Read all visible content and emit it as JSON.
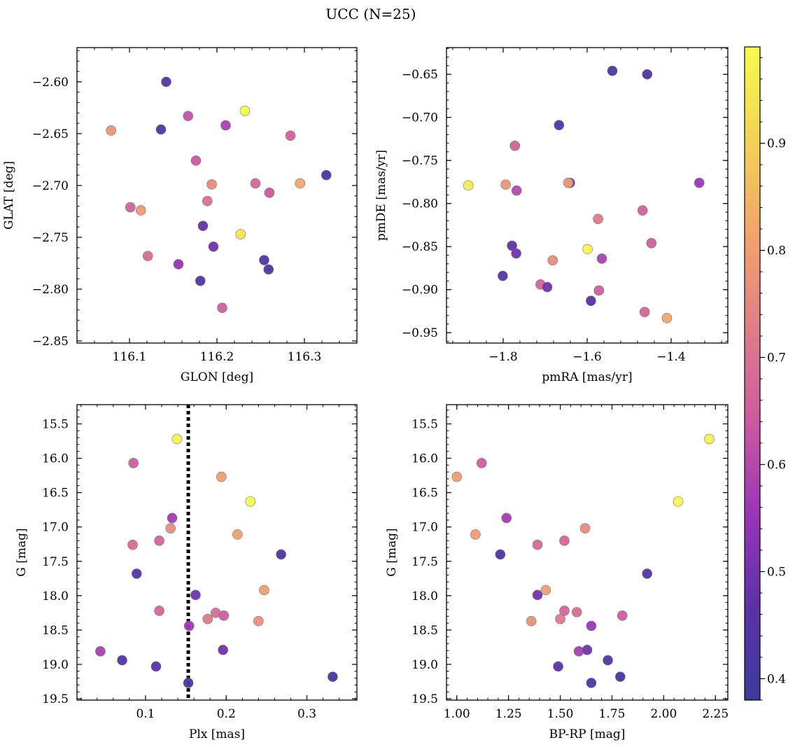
{
  "figure": {
    "title": "UCC (N=25)"
  },
  "colorbar": {
    "range": [
      0.38,
      0.99
    ],
    "ticks": [
      0.4,
      0.5,
      0.6,
      0.7,
      0.8,
      0.9
    ],
    "tick_labels": [
      "0.4",
      "0.5",
      "0.6",
      "0.7",
      "0.8",
      "0.9"
    ],
    "colormap": "plasma-like",
    "stops": [
      "#3e3a9b",
      "#5a32a8",
      "#9a35b8",
      "#cc5aa0",
      "#e07e88",
      "#f2a46c",
      "#f3d257",
      "#f4fb4e"
    ]
  },
  "chart_data": [
    {
      "type": "scatter",
      "name": "glon-glat",
      "xlabel": "GLON [deg]",
      "ylabel": "GLAT [deg]",
      "xlim": [
        116.04,
        116.36
      ],
      "ylim": [
        -2.852,
        -2.567
      ],
      "xticks": [
        116.1,
        116.2,
        116.3
      ],
      "xtick_labels": [
        "116.1",
        "116.2",
        "116.3"
      ],
      "yticks": [
        -2.85,
        -2.8,
        -2.75,
        -2.7,
        -2.65,
        -2.6
      ],
      "ytick_labels": [
        "−2.85",
        "−2.80",
        "−2.75",
        "−2.70",
        "−2.65",
        "−2.60"
      ],
      "points": [
        {
          "x": 116.142,
          "y": -2.6,
          "c": 0.45
        },
        {
          "x": 116.079,
          "y": -2.647,
          "c": 0.78
        },
        {
          "x": 116.136,
          "y": -2.646,
          "c": 0.42
        },
        {
          "x": 116.167,
          "y": -2.633,
          "c": 0.62
        },
        {
          "x": 116.21,
          "y": -2.642,
          "c": 0.58
        },
        {
          "x": 116.232,
          "y": -2.628,
          "c": 0.99
        },
        {
          "x": 116.284,
          "y": -2.652,
          "c": 0.66
        },
        {
          "x": 116.176,
          "y": -2.676,
          "c": 0.64
        },
        {
          "x": 116.194,
          "y": -2.699,
          "c": 0.76
        },
        {
          "x": 116.244,
          "y": -2.698,
          "c": 0.67
        },
        {
          "x": 116.26,
          "y": -2.707,
          "c": 0.64
        },
        {
          "x": 116.295,
          "y": -2.698,
          "c": 0.82
        },
        {
          "x": 116.325,
          "y": -2.69,
          "c": 0.41
        },
        {
          "x": 116.101,
          "y": -2.721,
          "c": 0.66
        },
        {
          "x": 116.113,
          "y": -2.724,
          "c": 0.79
        },
        {
          "x": 116.189,
          "y": -2.715,
          "c": 0.7
        },
        {
          "x": 116.184,
          "y": -2.739,
          "c": 0.48
        },
        {
          "x": 116.227,
          "y": -2.747,
          "c": 0.95
        },
        {
          "x": 116.196,
          "y": -2.759,
          "c": 0.5
        },
        {
          "x": 116.121,
          "y": -2.768,
          "c": 0.68
        },
        {
          "x": 116.156,
          "y": -2.776,
          "c": 0.55
        },
        {
          "x": 116.254,
          "y": -2.772,
          "c": 0.44
        },
        {
          "x": 116.259,
          "y": -2.781,
          "c": 0.42
        },
        {
          "x": 116.181,
          "y": -2.792,
          "c": 0.45
        },
        {
          "x": 116.206,
          "y": -2.818,
          "c": 0.66
        }
      ]
    },
    {
      "type": "scatter",
      "name": "pmra-pmde",
      "xlabel": "pmRA [mas/yr]",
      "ylabel": "pmDE [mas/yr]",
      "xlim": [
        -1.935,
        -1.265
      ],
      "ylim": [
        -0.962,
        -0.619
      ],
      "xticks": [
        -1.8,
        -1.6,
        -1.4
      ],
      "xtick_labels": [
        "−1.8",
        "−1.6",
        "−1.4"
      ],
      "yticks": [
        -0.95,
        -0.9,
        -0.85,
        -0.8,
        -0.75,
        -0.7,
        -0.65
      ],
      "ytick_labels": [
        "−0.95",
        "−0.90",
        "−0.85",
        "−0.80",
        "−0.75",
        "−0.70",
        "−0.65"
      ],
      "points": [
        {
          "x": -1.54,
          "y": -0.646,
          "c": 0.42
        },
        {
          "x": -1.457,
          "y": -0.65,
          "c": 0.43
        },
        {
          "x": -1.667,
          "y": -0.709,
          "c": 0.44
        },
        {
          "x": -1.772,
          "y": -0.733,
          "c": 0.66
        },
        {
          "x": -1.883,
          "y": -0.779,
          "c": 0.96
        },
        {
          "x": -1.794,
          "y": -0.778,
          "c": 0.78
        },
        {
          "x": -1.768,
          "y": -0.785,
          "c": 0.6
        },
        {
          "x": -1.641,
          "y": -0.776,
          "c": 0.42
        },
        {
          "x": -1.645,
          "y": -0.776,
          "c": 0.8
        },
        {
          "x": -1.333,
          "y": -0.776,
          "c": 0.56
        },
        {
          "x": -1.468,
          "y": -0.808,
          "c": 0.66
        },
        {
          "x": -1.574,
          "y": -0.818,
          "c": 0.72
        },
        {
          "x": -1.779,
          "y": -0.849,
          "c": 0.48
        },
        {
          "x": -1.769,
          "y": -0.858,
          "c": 0.5
        },
        {
          "x": -1.599,
          "y": -0.853,
          "c": 0.97
        },
        {
          "x": -1.447,
          "y": -0.846,
          "c": 0.66
        },
        {
          "x": -1.565,
          "y": -0.864,
          "c": 0.58
        },
        {
          "x": -1.682,
          "y": -0.866,
          "c": 0.76
        },
        {
          "x": -1.801,
          "y": -0.884,
          "c": 0.45
        },
        {
          "x": -1.711,
          "y": -0.894,
          "c": 0.67
        },
        {
          "x": -1.695,
          "y": -0.897,
          "c": 0.5
        },
        {
          "x": -1.572,
          "y": -0.901,
          "c": 0.65
        },
        {
          "x": -1.591,
          "y": -0.913,
          "c": 0.46
        },
        {
          "x": -1.463,
          "y": -0.926,
          "c": 0.67
        },
        {
          "x": -1.41,
          "y": -0.933,
          "c": 0.82
        }
      ]
    },
    {
      "type": "scatter",
      "name": "plx-g",
      "xlabel": "Plx [mas]",
      "ylabel": "G [mag]",
      "xlim": [
        0.015,
        0.362
      ],
      "ylim": [
        19.52,
        15.22
      ],
      "y_inverted": true,
      "xticks": [
        0.1,
        0.2,
        0.3
      ],
      "xtick_labels": [
        "0.1",
        "0.2",
        "0.3"
      ],
      "yticks": [
        15.5,
        16.0,
        16.5,
        17.0,
        17.5,
        18.0,
        18.5,
        19.0,
        19.5
      ],
      "ytick_labels": [
        "15.5",
        "16.0",
        "16.5",
        "17.0",
        "17.5",
        "18.0",
        "18.5",
        "19.0",
        "19.5"
      ],
      "vline": {
        "x": 0.153,
        "style": "dotted"
      },
      "points": [
        {
          "x": 0.139,
          "y": 15.72,
          "c": 0.97
        },
        {
          "x": 0.085,
          "y": 16.07,
          "c": 0.65
        },
        {
          "x": 0.194,
          "y": 16.27,
          "c": 0.8
        },
        {
          "x": 0.23,
          "y": 16.63,
          "c": 0.99
        },
        {
          "x": 0.133,
          "y": 16.87,
          "c": 0.57
        },
        {
          "x": 0.131,
          "y": 17.02,
          "c": 0.76
        },
        {
          "x": 0.214,
          "y": 17.11,
          "c": 0.8
        },
        {
          "x": 0.084,
          "y": 17.26,
          "c": 0.68
        },
        {
          "x": 0.117,
          "y": 17.2,
          "c": 0.67
        },
        {
          "x": 0.268,
          "y": 17.4,
          "c": 0.43
        },
        {
          "x": 0.089,
          "y": 17.68,
          "c": 0.45
        },
        {
          "x": 0.247,
          "y": 17.92,
          "c": 0.8
        },
        {
          "x": 0.162,
          "y": 17.99,
          "c": 0.5
        },
        {
          "x": 0.117,
          "y": 18.22,
          "c": 0.67
        },
        {
          "x": 0.187,
          "y": 18.25,
          "c": 0.69
        },
        {
          "x": 0.197,
          "y": 18.29,
          "c": 0.65
        },
        {
          "x": 0.177,
          "y": 18.34,
          "c": 0.72
        },
        {
          "x": 0.24,
          "y": 18.37,
          "c": 0.77
        },
        {
          "x": 0.154,
          "y": 18.44,
          "c": 0.56
        },
        {
          "x": 0.044,
          "y": 18.81,
          "c": 0.58
        },
        {
          "x": 0.196,
          "y": 18.79,
          "c": 0.5
        },
        {
          "x": 0.071,
          "y": 18.94,
          "c": 0.45
        },
        {
          "x": 0.113,
          "y": 19.03,
          "c": 0.46
        },
        {
          "x": 0.332,
          "y": 19.18,
          "c": 0.41
        },
        {
          "x": 0.153,
          "y": 19.27,
          "c": 0.43
        }
      ]
    },
    {
      "type": "scatter",
      "name": "bprp-g",
      "xlabel": "BP-RP [mag]",
      "ylabel": "G [mag]",
      "xlim": [
        0.95,
        2.31
      ],
      "ylim": [
        19.52,
        15.22
      ],
      "y_inverted": true,
      "xticks": [
        1.0,
        1.25,
        1.5,
        1.75,
        2.0,
        2.25
      ],
      "xtick_labels": [
        "1.00",
        "1.25",
        "1.50",
        "1.75",
        "2.00",
        "2.25"
      ],
      "yticks": [
        15.5,
        16.0,
        16.5,
        17.0,
        17.5,
        18.0,
        18.5,
        19.0,
        19.5
      ],
      "ytick_labels": [
        "15.5",
        "16.0",
        "16.5",
        "17.0",
        "17.5",
        "18.0",
        "18.5",
        "19.0",
        "19.5"
      ],
      "points": [
        {
          "x": 2.22,
          "y": 15.72,
          "c": 0.97
        },
        {
          "x": 1.12,
          "y": 16.07,
          "c": 0.65
        },
        {
          "x": 1.0,
          "y": 16.27,
          "c": 0.8
        },
        {
          "x": 2.07,
          "y": 16.63,
          "c": 0.99
        },
        {
          "x": 1.24,
          "y": 16.87,
          "c": 0.57
        },
        {
          "x": 1.62,
          "y": 17.02,
          "c": 0.76
        },
        {
          "x": 1.09,
          "y": 17.11,
          "c": 0.8
        },
        {
          "x": 1.39,
          "y": 17.26,
          "c": 0.68
        },
        {
          "x": 1.52,
          "y": 17.2,
          "c": 0.67
        },
        {
          "x": 1.21,
          "y": 17.4,
          "c": 0.43
        },
        {
          "x": 1.92,
          "y": 17.68,
          "c": 0.45
        },
        {
          "x": 1.43,
          "y": 17.92,
          "c": 0.8
        },
        {
          "x": 1.39,
          "y": 17.99,
          "c": 0.5
        },
        {
          "x": 1.52,
          "y": 18.22,
          "c": 0.67
        },
        {
          "x": 1.58,
          "y": 18.24,
          "c": 0.69
        },
        {
          "x": 1.8,
          "y": 18.29,
          "c": 0.65
        },
        {
          "x": 1.5,
          "y": 18.34,
          "c": 0.72
        },
        {
          "x": 1.36,
          "y": 18.37,
          "c": 0.77
        },
        {
          "x": 1.65,
          "y": 18.44,
          "c": 0.56
        },
        {
          "x": 1.59,
          "y": 18.81,
          "c": 0.58
        },
        {
          "x": 1.63,
          "y": 18.79,
          "c": 0.5
        },
        {
          "x": 1.73,
          "y": 18.94,
          "c": 0.45
        },
        {
          "x": 1.49,
          "y": 19.03,
          "c": 0.46
        },
        {
          "x": 1.79,
          "y": 19.18,
          "c": 0.41
        },
        {
          "x": 1.65,
          "y": 19.27,
          "c": 0.43
        }
      ]
    }
  ]
}
